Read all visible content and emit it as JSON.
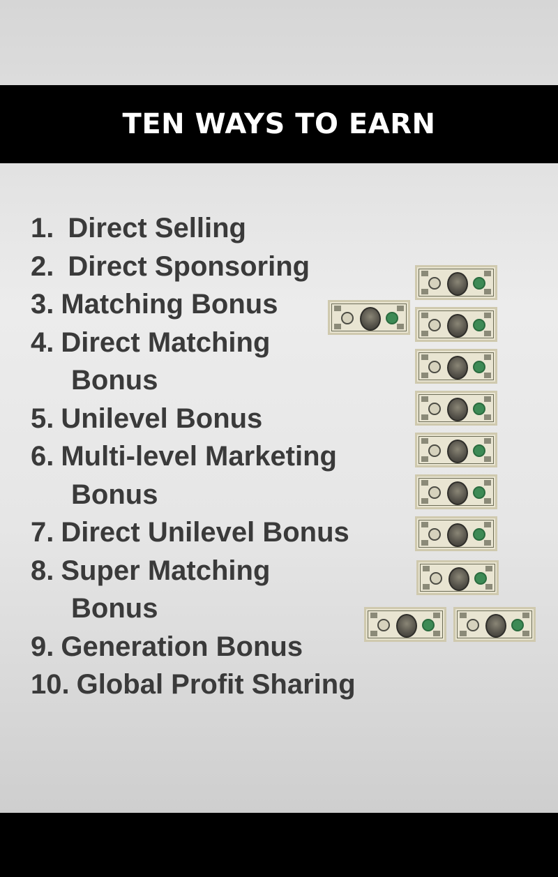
{
  "title": "TEN WAYS TO EARN",
  "items": [
    {
      "number": "1.",
      "text": "Direct Selling"
    },
    {
      "number": "2.",
      "text": "Direct Sponsoring"
    },
    {
      "number": "3.",
      "text": "Matching Bonus"
    },
    {
      "number": "4.",
      "text": "Direct Matching",
      "continuation": "Bonus"
    },
    {
      "number": "5.",
      "text": "Unilevel Bonus"
    },
    {
      "number": "6.",
      "text": "Multi-level Marketing",
      "continuation": "Bonus"
    },
    {
      "number": "7.",
      "text": "Direct Unilevel Bonus"
    },
    {
      "number": "8.",
      "text": "Super Matching",
      "continuation": "Bonus"
    },
    {
      "number": "9.",
      "text": "Generation Bonus"
    },
    {
      "number": "10.",
      "text": "Global Profit Sharing"
    }
  ],
  "illustration": {
    "depicts": "numeral-1-made-of-dollar-bills",
    "bill_count": 12
  },
  "colors": {
    "title_band": "#000000",
    "title_text": "#ffffff",
    "list_text": "#3a3a3a",
    "bill_paper": "#e9e5d2",
    "bill_seal": "#3d8a55"
  }
}
